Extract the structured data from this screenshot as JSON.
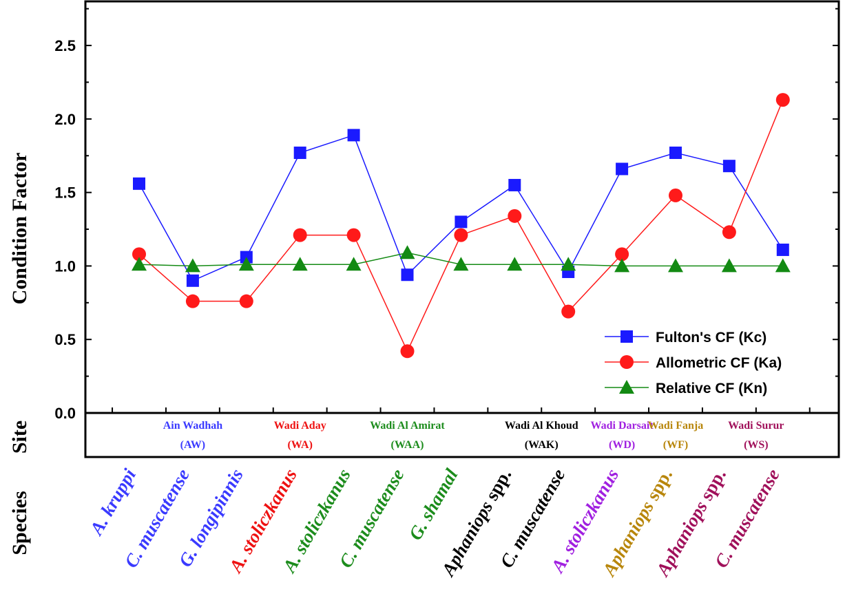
{
  "chart_data": {
    "type": "line",
    "ylabel": "Condition Factor",
    "site_axis_label": "Site",
    "species_axis_label": "Species",
    "ylim": [
      0,
      2.8
    ],
    "yticks": [
      "0.0",
      "0.5",
      "1.0",
      "1.5",
      "2.0",
      "2.5"
    ],
    "grid": false,
    "legend_position": "bottom-right",
    "categories": [
      "A. kruppi",
      "C. muscatense",
      "G. longipinnis",
      "A. stoliczkanus",
      "A. stoliczkanus",
      "C. muscatense",
      "G. shamal",
      "Aphaniops spp.",
      "C. muscatense",
      "A. stoliczkanus",
      "Aphaniops spp.",
      "Aphaniops spp.",
      "C. muscatense"
    ],
    "species": [
      {
        "genus": "A. kruppi",
        "suffix": "",
        "color": "#3a3aff"
      },
      {
        "genus": "C. muscatense",
        "suffix": "",
        "color": "#3a3aff"
      },
      {
        "genus": "G. longipinnis",
        "suffix": "",
        "color": "#3a3aff"
      },
      {
        "genus": "A. stoliczkanus",
        "suffix": "",
        "color": "#ee1111"
      },
      {
        "genus": "A. stoliczkanus",
        "suffix": "",
        "color": "#1c8c1c"
      },
      {
        "genus": "C. muscatense",
        "suffix": "",
        "color": "#1c8c1c"
      },
      {
        "genus": "G. shamal",
        "suffix": "",
        "color": "#1c8c1c"
      },
      {
        "genus": "Aphaniops",
        "suffix": " spp.",
        "color": "#000000"
      },
      {
        "genus": "C. muscatense",
        "suffix": "",
        "color": "#000000"
      },
      {
        "genus": "A. stoliczkanus",
        "suffix": "",
        "color": "#a020e0"
      },
      {
        "genus": "Aphaniops",
        "suffix": " spp.",
        "color": "#b8860b"
      },
      {
        "genus": "Aphaniops",
        "suffix": " spp.",
        "color": "#a0105a"
      },
      {
        "genus": "C. muscatense",
        "suffix": "",
        "color": "#a0105a"
      }
    ],
    "sites": [
      {
        "name": "Ain Wadhah",
        "code": "(AW)",
        "color": "#3a3aff",
        "from": 0,
        "to": 2
      },
      {
        "name": "Wadi Aday",
        "code": "(WA)",
        "color": "#ee1111",
        "from": 3,
        "to": 3
      },
      {
        "name": "Wadi Al Amirat",
        "code": "(WAA)",
        "color": "#1c8c1c",
        "from": 4,
        "to": 6
      },
      {
        "name": "Wadi Al Khoud",
        "code": "(WAK)",
        "color": "#000000",
        "from": 7,
        "to": 8
      },
      {
        "name": "Wadi Darsait",
        "code": "(WD)",
        "color": "#a020e0",
        "from": 9,
        "to": 9
      },
      {
        "name": "Wadi Fanja",
        "code": "(WF)",
        "color": "#b8860b",
        "from": 10,
        "to": 10
      },
      {
        "name": "Wadi Surur",
        "code": "(WS)",
        "color": "#a0105a",
        "from": 11,
        "to": 12
      }
    ],
    "series": [
      {
        "name": "Fulton's CF (Kc)",
        "color": "#1a1aff",
        "marker": "square",
        "values": [
          1.56,
          0.9,
          1.06,
          1.77,
          1.89,
          0.94,
          1.3,
          1.55,
          0.96,
          1.66,
          1.77,
          1.68,
          1.11
        ]
      },
      {
        "name": "Allometric CF (Ka)",
        "color": "#ff1a1a",
        "marker": "circle",
        "values": [
          1.08,
          0.76,
          0.76,
          1.21,
          1.21,
          0.42,
          1.21,
          1.34,
          0.69,
          1.08,
          1.48,
          1.23,
          2.13
        ]
      },
      {
        "name": "Relative CF (Kn)",
        "color": "#138a13",
        "marker": "triangle",
        "values": [
          1.01,
          1.0,
          1.01,
          1.01,
          1.01,
          1.09,
          1.01,
          1.01,
          1.01,
          1.0,
          1.0,
          1.0,
          1.0
        ]
      }
    ]
  }
}
